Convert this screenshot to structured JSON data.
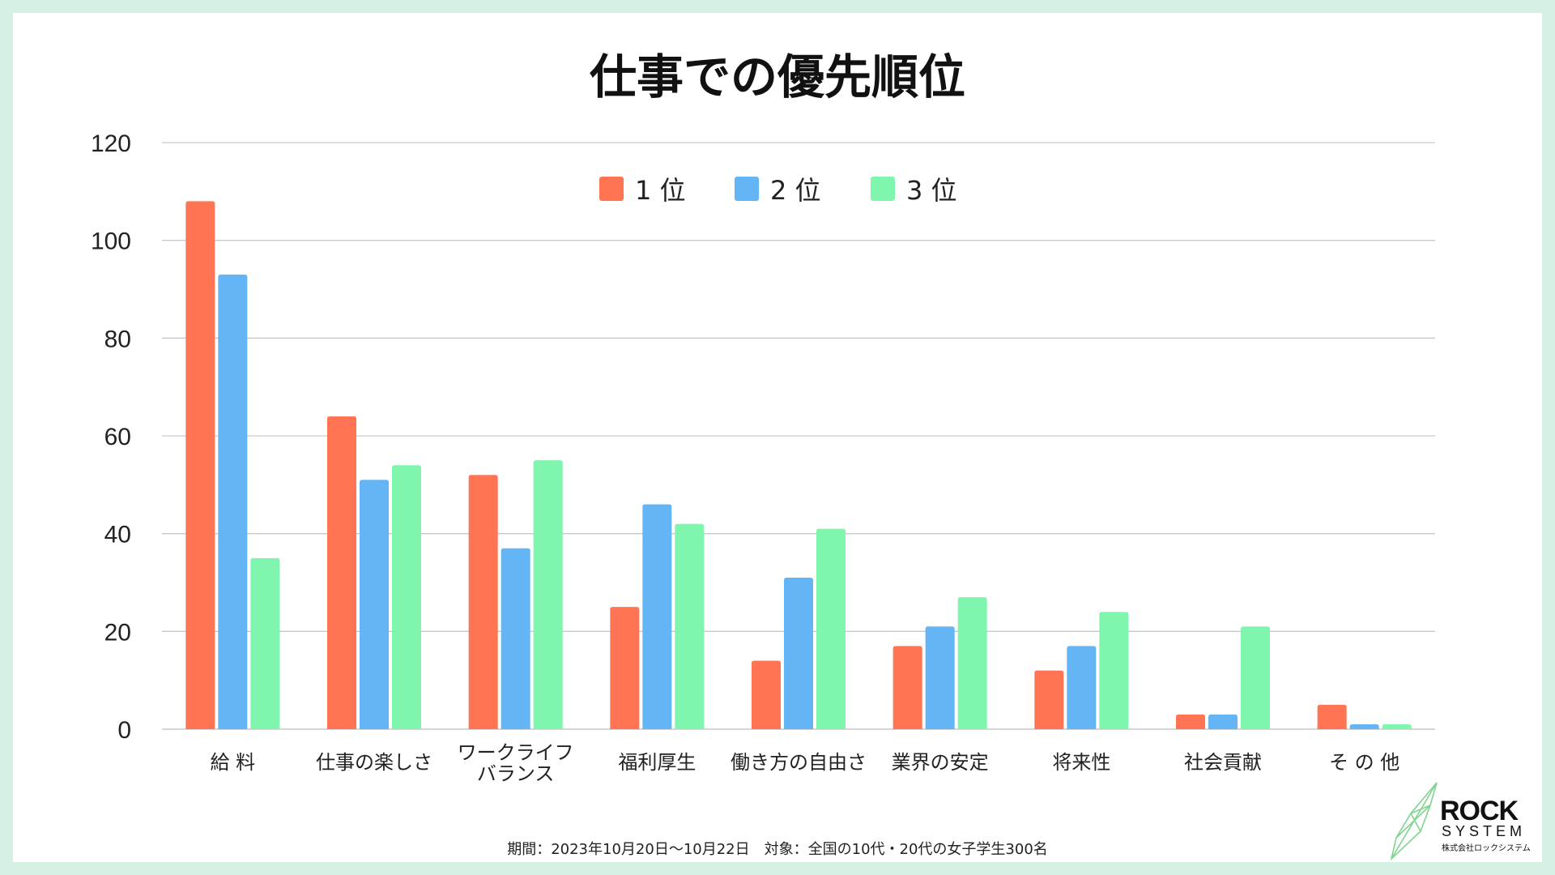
{
  "chart_data": {
    "type": "bar",
    "title": "仕事での優先順位",
    "categories": [
      "給 料",
      "仕事の楽しさ",
      "ワークライフ\nバランス",
      "福利厚生",
      "働き方の自由さ",
      "業界の安定",
      "将来性",
      "社会貢献",
      "そ の 他"
    ],
    "series": [
      {
        "name": "1 位",
        "color": "#ff7452",
        "values": [
          108,
          64,
          52,
          25,
          14,
          17,
          12,
          3,
          5
        ]
      },
      {
        "name": "2 位",
        "color": "#64b5f6",
        "values": [
          93,
          51,
          37,
          46,
          31,
          21,
          17,
          3,
          1
        ]
      },
      {
        "name": "3 位",
        "color": "#80f5ad",
        "values": [
          35,
          54,
          55,
          42,
          41,
          27,
          24,
          21,
          1
        ]
      }
    ],
    "yticks": [
      0,
      20,
      40,
      60,
      80,
      100,
      120
    ],
    "ylim": [
      0,
      120
    ],
    "grid": true,
    "legend_position": "top-center"
  },
  "footnote": "期間：2023年10月20日〜10月22日　対象：全国の10代・20代の女子学生300名",
  "logo": {
    "main": "ROCK",
    "sub": "SYSTEM",
    "company": "株式会社ロックシステム"
  }
}
